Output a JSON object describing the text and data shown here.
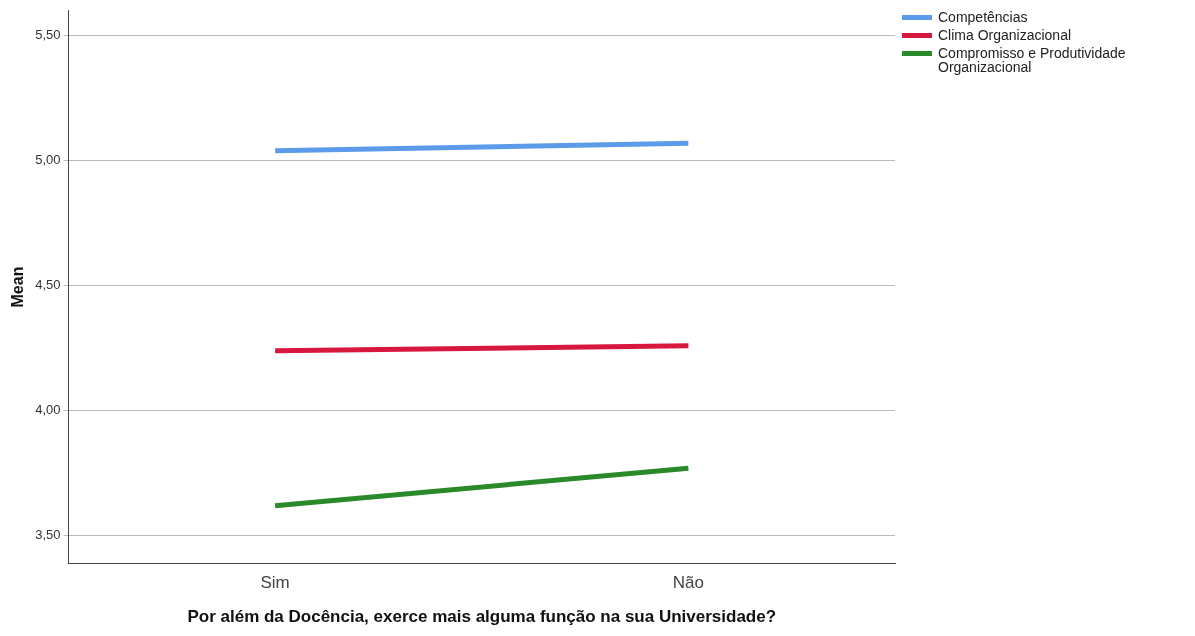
{
  "chart_data": {
    "type": "line",
    "xlabel": "Por além da Docência, exerce mais alguma função na sua Universidade?",
    "ylabel": "Mean",
    "categories": [
      "Sim",
      "Não"
    ],
    "series": [
      {
        "name": "Competências",
        "color": "#5b9bea",
        "values": [
          5.04,
          5.07
        ]
      },
      {
        "name": "Clima Organizacional",
        "color": "#d8173f",
        "values": [
          4.24,
          4.26
        ]
      },
      {
        "name": "Compromisso e Produtividade Organizacional",
        "color": "#2a8a2a",
        "values": [
          3.62,
          3.77
        ]
      }
    ],
    "ylim": [
      3.39,
      5.6
    ],
    "yticks": [
      {
        "value": 3.5,
        "label": "3,50"
      },
      {
        "value": 4,
        "label": "4,00"
      },
      {
        "value": 4.5,
        "label": "4,50"
      },
      {
        "value": 5,
        "label": "5,00"
      },
      {
        "value": 5.5,
        "label": "5,50"
      }
    ],
    "grid": "y",
    "legend": "top right",
    "marker": "none",
    "line_style": "solid"
  }
}
